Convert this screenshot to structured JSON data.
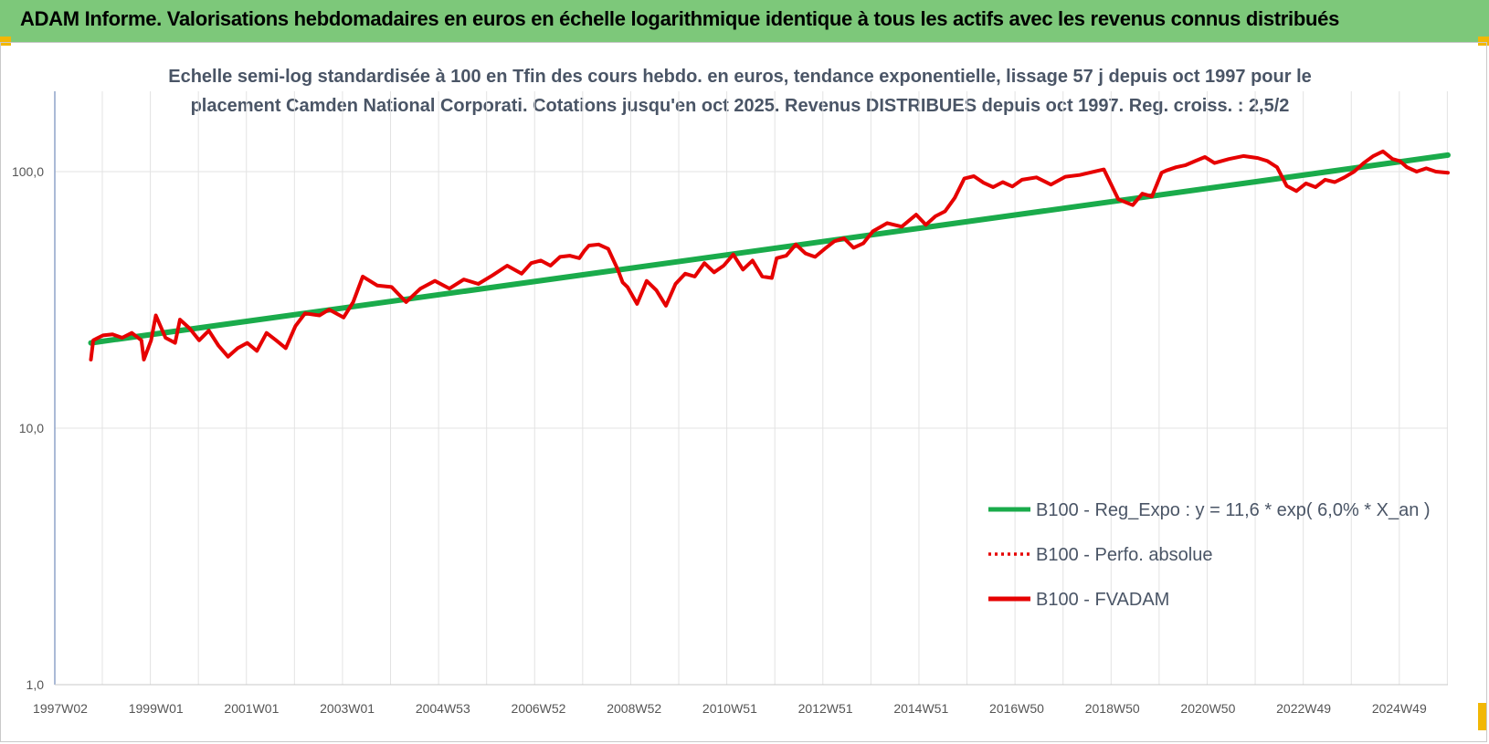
{
  "header": {
    "title": "ADAM Informe. Valorisations hebdomadaires en euros en échelle logarithmique identique à tous les actifs avec les revenus connus distribués"
  },
  "colors": {
    "banner": "#7dc87a",
    "regression": "#1aab4b",
    "fvadam": "#e60000",
    "perfo": "#e60000",
    "accent": "#f2b705"
  },
  "chart_data": {
    "type": "line",
    "title_lines": [
      "Echelle semi-log standardisée à 100 en Tfin des cours hebdo. en euros, tendance exponentielle, lissage 57 j depuis oct 1997 pour le",
      "placement Camden National Corporati. Cotations jusqu'en oct 2025. Revenus DISTRIBUES depuis oct 1997. Reg. croiss. : 2,5/2"
    ],
    "y_scale": "log",
    "ylim": [
      1,
      200
    ],
    "y_ticks": [
      "1,0",
      "10,0",
      "100,0"
    ],
    "x_ticks": [
      "1997W02",
      "1999W01",
      "2001W01",
      "2003W01",
      "2004W53",
      "2006W52",
      "2008W52",
      "2010W51",
      "2012W51",
      "2014W51",
      "2016W50",
      "2018W50",
      "2020W50",
      "2022W49",
      "2024W49"
    ],
    "xlim": [
      1997.0,
      2025.95
    ],
    "grid": true,
    "legend_position": "bottom-right",
    "series": [
      {
        "name": "B100 - Reg_Expo : y = 11,6 * exp( 6,0% *  X_an )",
        "style": "solid-green",
        "x": [
          1997.75,
          2025.95
        ],
        "y": [
          21.5,
          116
        ]
      },
      {
        "name": "B100 - Perfo. absolue",
        "style": "dotted-red",
        "x": [],
        "y": []
      },
      {
        "name": "B100 - FVADAM",
        "style": "solid-red",
        "x": [
          1997.75,
          1997.8,
          1997.9,
          1998.0,
          1998.2,
          1998.4,
          1998.6,
          1998.8,
          1998.85,
          1999.0,
          1999.1,
          1999.3,
          1999.5,
          1999.6,
          1999.8,
          2000.0,
          2000.2,
          2000.4,
          2000.6,
          2000.8,
          2001.0,
          2001.2,
          2001.4,
          2001.6,
          2001.8,
          2002.0,
          2002.2,
          2002.5,
          2002.7,
          2003.0,
          2003.2,
          2003.4,
          2003.7,
          2004.0,
          2004.3,
          2004.6,
          2004.9,
          2005.2,
          2005.5,
          2005.8,
          2006.1,
          2006.4,
          2006.7,
          2006.9,
          2007.1,
          2007.3,
          2007.5,
          2007.7,
          2007.9,
          2008.0,
          2008.1,
          2008.3,
          2008.5,
          2008.7,
          2008.8,
          2008.9,
          2009.1,
          2009.3,
          2009.5,
          2009.7,
          2009.9,
          2010.1,
          2010.3,
          2010.5,
          2010.7,
          2010.9,
          2011.1,
          2011.3,
          2011.5,
          2011.7,
          2011.9,
          2012.0,
          2012.2,
          2012.4,
          2012.6,
          2012.8,
          2013.0,
          2013.2,
          2013.4,
          2013.6,
          2013.8,
          2014.0,
          2014.3,
          2014.6,
          2014.9,
          2015.1,
          2015.3,
          2015.5,
          2015.7,
          2015.9,
          2016.1,
          2016.3,
          2016.5,
          2016.7,
          2016.9,
          2017.1,
          2017.4,
          2017.7,
          2018.0,
          2018.3,
          2018.5,
          2018.8,
          2019.1,
          2019.4,
          2019.6,
          2019.8,
          2020.0,
          2020.1,
          2020.3,
          2020.5,
          2020.7,
          2020.9,
          2021.1,
          2021.4,
          2021.7,
          2022.0,
          2022.2,
          2022.4,
          2022.6,
          2022.8,
          2023.0,
          2023.2,
          2023.4,
          2023.6,
          2023.8,
          2024.0,
          2024.2,
          2024.4,
          2024.6,
          2024.8,
          2024.95,
          2025.1,
          2025.3,
          2025.5,
          2025.7,
          2025.95
        ],
        "y": [
          18.5,
          22.0,
          22.5,
          23.0,
          23.2,
          22.5,
          23.5,
          22.0,
          18.5,
          22.0,
          27.5,
          22.5,
          21.5,
          26.5,
          24.5,
          22.0,
          24.0,
          21.0,
          19.0,
          20.5,
          21.5,
          20.0,
          23.5,
          22.0,
          20.5,
          25.0,
          28.0,
          27.5,
          29.0,
          27.0,
          31.0,
          39.0,
          36.0,
          35.5,
          31.0,
          35.0,
          37.5,
          35.0,
          38.0,
          36.5,
          39.5,
          43.0,
          40.0,
          44.0,
          45.0,
          43.0,
          46.5,
          47.0,
          46.0,
          49.0,
          51.5,
          52.0,
          50.0,
          41.5,
          37.0,
          35.5,
          30.5,
          37.5,
          34.5,
          30.0,
          36.5,
          40.0,
          39.0,
          44.0,
          40.5,
          43.0,
          47.5,
          41.5,
          45.0,
          39.0,
          38.5,
          46.0,
          47.0,
          52.0,
          48.0,
          46.5,
          50.0,
          53.5,
          55.0,
          50.5,
          52.5,
          58.5,
          63.0,
          61.0,
          68.0,
          62.0,
          67.0,
          70.0,
          79.0,
          94.0,
          96.0,
          90.5,
          87.0,
          91.0,
          87.5,
          93.0,
          95.0,
          89.0,
          95.5,
          97.0,
          99.0,
          102.0,
          78.0,
          74.0,
          82.0,
          80.0,
          99.0,
          101.0,
          104.0,
          106.0,
          110.0,
          114.0,
          108.0,
          112.0,
          115.0,
          113.0,
          110.0,
          104.0,
          88.0,
          84.0,
          90.0,
          87.0,
          93.0,
          91.0,
          95.0,
          100.0,
          108.0,
          115.0,
          120.0,
          112.0,
          110.0,
          104.0,
          100.0,
          103.0,
          100.0,
          99.0
        ]
      }
    ]
  }
}
